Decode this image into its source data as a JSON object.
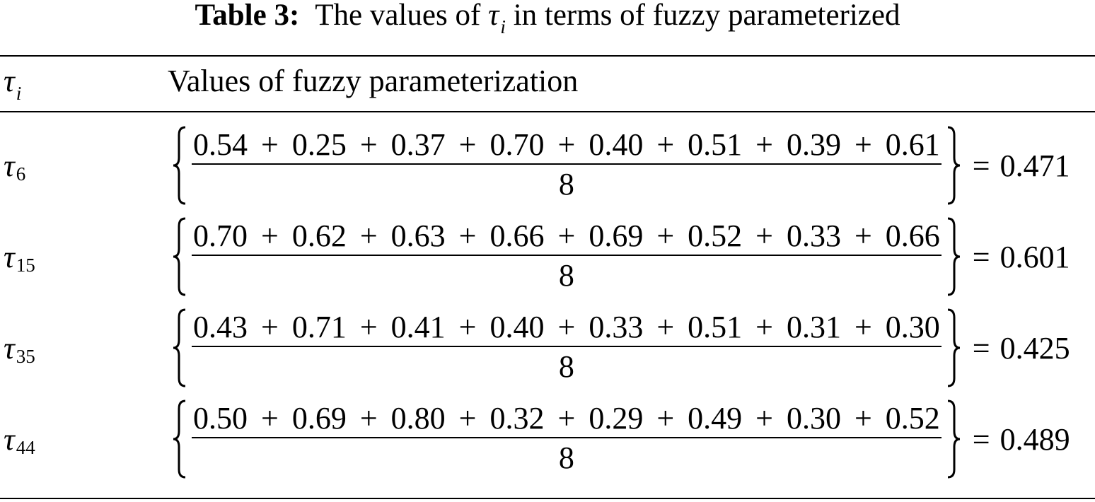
{
  "caption": {
    "label": "Table 3:",
    "before": "The values of",
    "symbol": "τ",
    "subscript": "i",
    "after": "in terms of fuzzy parameterized"
  },
  "header": {
    "symbol": "τ",
    "subscript": "i",
    "title": "Values of fuzzy parameterization"
  },
  "operators": {
    "plus": "+",
    "equals": "="
  },
  "rows": [
    {
      "symbol": "τ",
      "subscript": "6",
      "terms": [
        "0.54",
        "0.25",
        "0.37",
        "0.70",
        "0.40",
        "0.51",
        "0.39",
        "0.61"
      ],
      "denominator": "8",
      "result": "0.471"
    },
    {
      "symbol": "τ",
      "subscript": "15",
      "terms": [
        "0.70",
        "0.62",
        "0.63",
        "0.66",
        "0.69",
        "0.52",
        "0.33",
        "0.66"
      ],
      "denominator": "8",
      "result": "0.601"
    },
    {
      "symbol": "τ",
      "subscript": "35",
      "terms": [
        "0.43",
        "0.71",
        "0.41",
        "0.40",
        "0.33",
        "0.51",
        "0.31",
        "0.30"
      ],
      "denominator": "8",
      "result": "0.425"
    },
    {
      "symbol": "τ",
      "subscript": "44",
      "terms": [
        "0.50",
        "0.69",
        "0.80",
        "0.32",
        "0.29",
        "0.49",
        "0.30",
        "0.52"
      ],
      "denominator": "8",
      "result": "0.489"
    }
  ]
}
